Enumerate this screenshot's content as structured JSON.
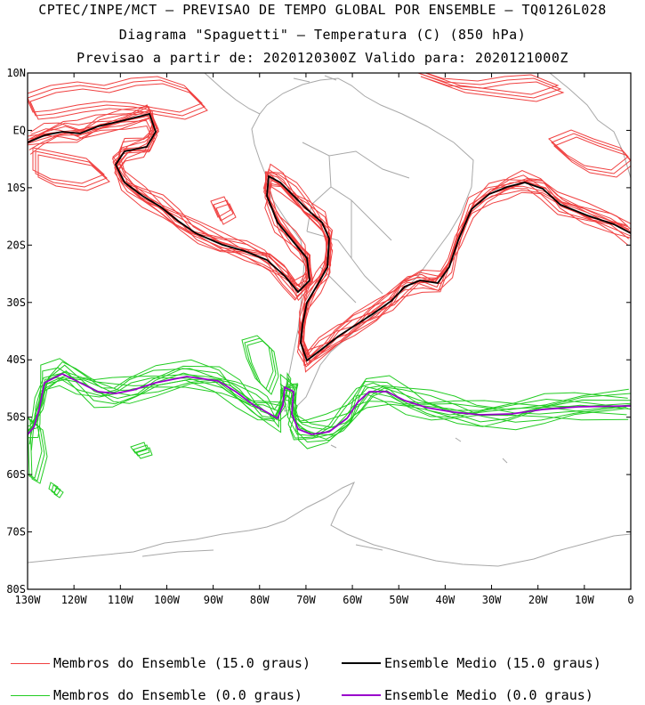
{
  "header": {
    "line1": "CPTEC/INPE/MCT — PREVISAO DE TEMPO GLOBAL POR ENSEMBLE — TQ0126L028",
    "line2": "Diagrama \"Spaguetti\" — Temperatura (C) (850 hPa)",
    "line3": "Previsao a partir de: 2020120300Z  Valido para: 2020121000Z"
  },
  "map": {
    "lat_labels": [
      "10N",
      "EQ",
      "10S",
      "20S",
      "30S",
      "40S",
      "50S",
      "60S",
      "70S",
      "80S"
    ],
    "lon_labels": [
      "130W",
      "120W",
      "110W",
      "100W",
      "90W",
      "80W",
      "70W",
      "60W",
      "50W",
      "40W",
      "30W",
      "20W",
      "10W",
      "0"
    ],
    "lat_range": [
      -80,
      10
    ],
    "lon_range": [
      -130,
      0
    ],
    "colors": {
      "members_15": "#f04040",
      "mean_15": "#000000",
      "members_0": "#22cc22",
      "mean_0": "#9900cc",
      "coast": "#a8a8a8"
    }
  },
  "legend": {
    "members_15": "Membros do Ensemble (15.0 graus)",
    "mean_15": "Ensemble Medio (15.0 graus)",
    "members_0": "Membros do Ensemble (0.0 graus)",
    "mean_0": "Ensemble Medio (0.0 graus)"
  }
}
